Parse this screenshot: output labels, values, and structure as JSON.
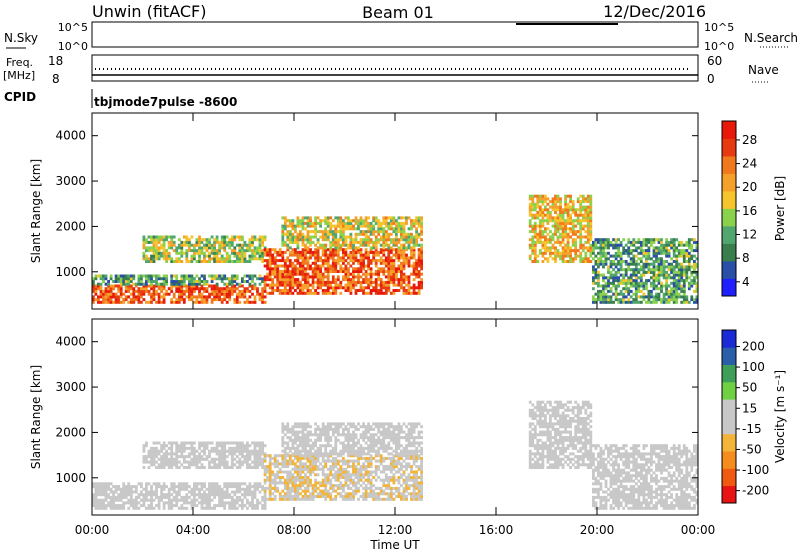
{
  "header": {
    "radar": "Unwin (fitACF)",
    "beam": "Beam 01",
    "date": "12/Dec/2016"
  },
  "status": {
    "nsky_label": "N.Sky",
    "nsky_ticks": [
      "10^5",
      "10^0"
    ],
    "nsearch_label": "N.Search",
    "nsearch_ticks": [
      "10^5",
      "10^0"
    ],
    "freq_label_1": "Freq.",
    "freq_label_2": "[MHz]",
    "freq_ticks": [
      "18",
      "8"
    ],
    "nave_label": "Nave",
    "nave_ticks": [
      "60",
      "0"
    ],
    "cpid_label": "CPID",
    "cpid_value": "tbjmode7pulse -8600"
  },
  "colors": {
    "power_scale": [
      "#1f1fff",
      "#2a4fa6",
      "#3a7e4e",
      "#51a56e",
      "#8bd24c",
      "#f6c42c",
      "#f5a02a",
      "#f0781d",
      "#e83a10",
      "#e8190a"
    ],
    "velocity_scale": [
      "#e81414",
      "#f05a10",
      "#f58c1e",
      "#f2b53a",
      "#c8c8c8",
      "#c8c8c8",
      "#6fd044",
      "#3f9e58",
      "#2a5ea8",
      "#1a2ad6"
    ]
  },
  "chart_data": [
    {
      "type": "heatmap",
      "title": "Power",
      "xlabel": "",
      "ylabel": "Slant Range [km]",
      "ylim": [
        180,
        4500
      ],
      "y_ticks": [
        "4000",
        "3000",
        "2000",
        "1000"
      ],
      "x_ticks": [
        "00:00",
        "04:00",
        "08:00",
        "12:00",
        "16:00",
        "20:00",
        "00:00"
      ],
      "xlim_hours": [
        0,
        24
      ],
      "colorbar": {
        "label": "Power [dB]",
        "ticks": [
          "28",
          "24",
          "20",
          "16",
          "12",
          "8",
          "4"
        ],
        "range": [
          0,
          30
        ]
      },
      "echo_bands": [
        {
          "t_start": 0.0,
          "t_end": 6.8,
          "r_low": 300,
          "r_high": 700,
          "value": 24
        },
        {
          "t_start": 0.0,
          "t_end": 6.8,
          "r_low": 700,
          "r_high": 900,
          "value": 10
        },
        {
          "t_start": 2.0,
          "t_end": 6.8,
          "r_low": 1200,
          "r_high": 1800,
          "value": 14
        },
        {
          "t_start": 6.8,
          "t_end": 13.0,
          "r_low": 500,
          "r_high": 1500,
          "value": 24
        },
        {
          "t_start": 7.5,
          "t_end": 13.0,
          "r_low": 1500,
          "r_high": 2200,
          "value": 16
        },
        {
          "t_start": 17.3,
          "t_end": 19.8,
          "r_low": 1200,
          "r_high": 2700,
          "value": 18
        },
        {
          "t_start": 19.8,
          "t_end": 24.0,
          "r_low": 300,
          "r_high": 1700,
          "value": 10
        }
      ]
    },
    {
      "type": "heatmap",
      "title": "Velocity",
      "xlabel": "Time UT",
      "ylabel": "Slant Range [km]",
      "ylim": [
        180,
        4500
      ],
      "y_ticks": [
        "4000",
        "3000",
        "2000",
        "1000"
      ],
      "x_ticks": [
        "00:00",
        "04:00",
        "08:00",
        "12:00",
        "16:00",
        "20:00",
        "00:00"
      ],
      "xlim_hours": [
        0,
        24
      ],
      "colorbar": {
        "label": "Velocity [m s⁻¹]",
        "ticks": [
          "200",
          "100",
          "50",
          "15",
          "-15",
          "-50",
          "-100",
          "-200"
        ],
        "range": [
          -250,
          250
        ]
      },
      "echo_bands": [
        {
          "t_start": 0.0,
          "t_end": 6.8,
          "r_low": 300,
          "r_high": 900,
          "value": 0
        },
        {
          "t_start": 2.0,
          "t_end": 6.8,
          "r_low": 1200,
          "r_high": 1800,
          "value": -10
        },
        {
          "t_start": 6.8,
          "t_end": 13.0,
          "r_low": 500,
          "r_high": 1500,
          "value": -40
        },
        {
          "t_start": 7.5,
          "t_end": 13.0,
          "r_low": 1500,
          "r_high": 2200,
          "value": -20
        },
        {
          "t_start": 17.3,
          "t_end": 19.8,
          "r_low": 1200,
          "r_high": 2700,
          "value": 5
        },
        {
          "t_start": 19.8,
          "t_end": 24.0,
          "r_low": 300,
          "r_high": 1700,
          "value": -15
        }
      ]
    }
  ]
}
